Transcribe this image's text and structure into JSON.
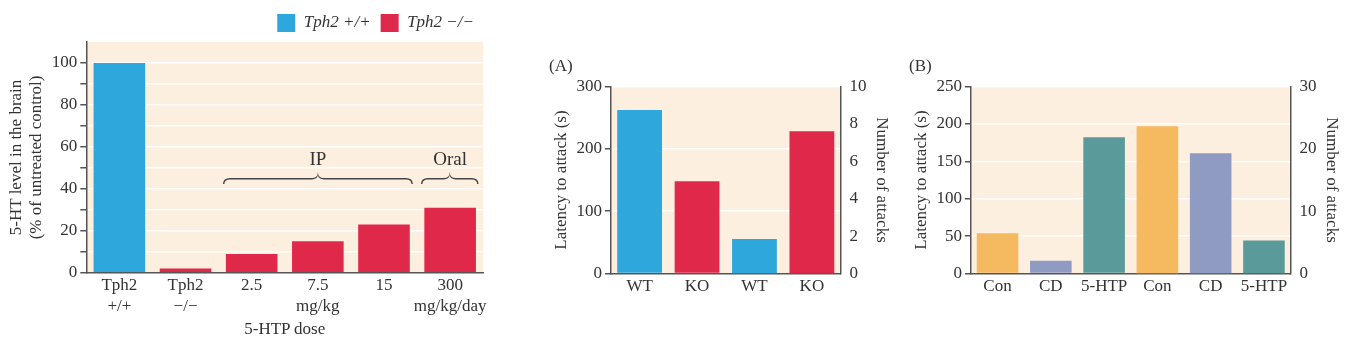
{
  "chart_data": [
    {
      "type": "bar",
      "categories": [
        "Tph2\n+/+",
        "Tph2\n−/−",
        "2.5",
        "7.5\nmg/kg",
        "15",
        "300\nmg/kg/day"
      ],
      "xlabel": "5-HTP dose",
      "ylabel": "5-HT level in the brain\n(% of untreated control)",
      "series": [
        {
          "name": "Tph2 +/+",
          "color": "#2ea7dc",
          "values": [
            100,
            null,
            null,
            null,
            null,
            null
          ]
        },
        {
          "name": "Tph2 −/−",
          "color": "#e0284a",
          "values": [
            null,
            2,
            9,
            15,
            23,
            31
          ]
        }
      ],
      "ylim": [
        0,
        110
      ],
      "yticks": [
        0,
        {
          "value": 10,
          "label": null
        },
        20,
        {
          "value": 30,
          "label": null
        },
        40,
        {
          "value": 50,
          "label": null
        },
        60,
        {
          "value": 70,
          "label": null
        },
        80,
        {
          "value": 90,
          "label": null
        },
        100
      ],
      "annotations": [
        "IP",
        "Oral"
      ],
      "grid": "y",
      "legend": "top right"
    },
    {
      "type": "bar",
      "title": "(A)",
      "categories": [
        "WT",
        "KO",
        "WT",
        "KO"
      ],
      "ylabel": "Latency to attack (s)",
      "y2label": "Number of attacks",
      "series": [
        {
          "colors": [
            "#2ea7dc",
            "#e0284a",
            "#2ea7dc",
            "#e0284a"
          ],
          "values": [
            262,
            148,
            null,
            null
          ]
        },
        {
          "colors": [
            "#2ea7dc",
            "#e0284a",
            "#2ea7dc",
            "#e0284a"
          ],
          "values": [
            null,
            null,
            1.85,
            7.6
          ],
          "axis": "y2"
        }
      ],
      "ylim": [
        0,
        300
      ],
      "yticks": [
        0,
        100,
        200,
        300
      ],
      "y2lim": [
        0,
        10
      ],
      "y2ticks": [
        0,
        2,
        4,
        6,
        8,
        10
      ],
      "grid": "y"
    },
    {
      "type": "bar",
      "title": "(B)",
      "categories": [
        "Con",
        "CD",
        "5-HTP",
        "Con",
        "CD",
        "5-HTP"
      ],
      "ylabel": "Latency to attack (s)",
      "y2label": "Number of attacks",
      "series": [
        {
          "colors": [
            "#f5b95f",
            "#8f9bc2",
            "#5a9a9a",
            "#f5b95f",
            "#8f9bc2",
            "#5a9a9a"
          ],
          "values": [
            54,
            17,
            182,
            null,
            null,
            null
          ]
        },
        {
          "colors": [
            "#f5b95f",
            "#8f9bc2",
            "#5a9a9a",
            "#f5b95f",
            "#8f9bc2",
            "#5a9a9a"
          ],
          "values": [
            null,
            null,
            null,
            23.6,
            19.3,
            5.3
          ],
          "axis": "y2"
        }
      ],
      "ylim": [
        0,
        250
      ],
      "yticks": [
        0,
        50,
        100,
        150,
        200,
        250
      ],
      "y2lim": [
        0,
        30
      ],
      "y2ticks": [
        0,
        10,
        20,
        30
      ],
      "grid": "y"
    }
  ]
}
